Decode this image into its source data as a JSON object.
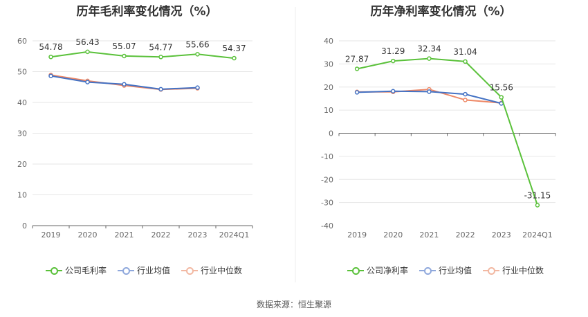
{
  "colors": {
    "company": "#5ac13a",
    "industry_avg": "#4472c4",
    "industry_median": "#ee8866",
    "grid": "#e6e6e6",
    "axis": "#666666",
    "text": "#333333"
  },
  "source": "数据来源：恒生聚源",
  "chart_data": [
    {
      "type": "line",
      "title": "历年毛利率变化情况（%）",
      "categories": [
        "2019",
        "2020",
        "2021",
        "2022",
        "2023",
        "2024Q1"
      ],
      "ylim": [
        0,
        60
      ],
      "yticks": [
        0,
        10,
        20,
        30,
        40,
        50,
        60
      ],
      "grid": true,
      "legend": "bottom",
      "series": [
        {
          "name": "公司毛利率",
          "key": "company",
          "values": [
            54.78,
            56.43,
            55.07,
            54.77,
            55.66,
            54.37
          ],
          "labels": [
            "54.78",
            "56.43",
            "55.07",
            "54.77",
            "55.66",
            "54.37"
          ]
        },
        {
          "name": "行业均值",
          "key": "industry_avg",
          "values": [
            48.6,
            46.6,
            45.9,
            44.3,
            44.8,
            null
          ]
        },
        {
          "name": "行业中位数",
          "key": "industry_median",
          "values": [
            48.9,
            47.0,
            45.5,
            44.2,
            44.6,
            null
          ]
        }
      ]
    },
    {
      "type": "line",
      "title": "历年净利率变化情况（%）",
      "categories": [
        "2019",
        "2020",
        "2021",
        "2022",
        "2023",
        "2024Q1"
      ],
      "ylim": [
        -40,
        40
      ],
      "yticks": [
        -40,
        -30,
        -20,
        -10,
        0,
        10,
        20,
        30,
        40
      ],
      "grid": true,
      "legend": "bottom",
      "series": [
        {
          "name": "公司净利率",
          "key": "company",
          "values": [
            27.87,
            31.29,
            32.34,
            31.04,
            15.56,
            -31.15
          ],
          "labels": [
            "27.87",
            "31.29",
            "32.34",
            "31.04",
            "15.56",
            "-31.15"
          ]
        },
        {
          "name": "行业均值",
          "key": "industry_avg",
          "values": [
            17.7,
            18.2,
            18.0,
            16.9,
            12.9,
            null
          ]
        },
        {
          "name": "行业中位数",
          "key": "industry_median",
          "values": [
            17.9,
            17.9,
            19.0,
            14.4,
            13.1,
            null
          ]
        }
      ]
    }
  ]
}
